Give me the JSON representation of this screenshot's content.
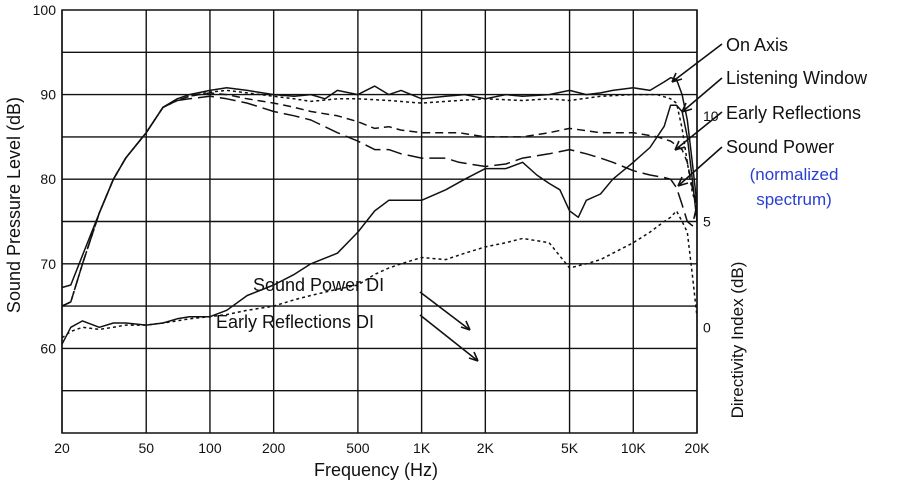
{
  "chart_data": {
    "type": "line",
    "xlabel": "Frequency (Hz)",
    "ylabel": "Sound Pressure Level (dB)",
    "y2label": "Directivity Index (dB)",
    "xscale": "log",
    "xlim": [
      20,
      20000
    ],
    "ylim": [
      50,
      100
    ],
    "y2lim": [
      -5,
      15
    ],
    "grid": true,
    "x_ticks": [
      {
        "value": 20,
        "label": "20"
      },
      {
        "value": 50,
        "label": "50"
      },
      {
        "value": 100,
        "label": "100"
      },
      {
        "value": 200,
        "label": "200"
      },
      {
        "value": 500,
        "label": "500"
      },
      {
        "value": 1000,
        "label": "1K"
      },
      {
        "value": 2000,
        "label": "2K"
      },
      {
        "value": 5000,
        "label": "5K"
      },
      {
        "value": 10000,
        "label": "10K"
      },
      {
        "value": 20000,
        "label": "20K"
      }
    ],
    "y_ticks": [
      {
        "value": 60,
        "label": "60"
      },
      {
        "value": 70,
        "label": "70"
      },
      {
        "value": 80,
        "label": "80"
      },
      {
        "value": 90,
        "label": "90"
      },
      {
        "value": 100,
        "label": "100"
      }
    ],
    "y2_ticks": [
      {
        "value": 0,
        "label": "0"
      },
      {
        "value": 5,
        "label": "5"
      },
      {
        "value": 10,
        "label": "10"
      }
    ],
    "series": [
      {
        "name": "On Axis",
        "axis": "left",
        "style": "solid",
        "x": [
          20,
          22,
          25,
          30,
          35,
          40,
          50,
          60,
          70,
          80,
          100,
          120,
          150,
          200,
          250,
          300,
          350,
          400,
          500,
          600,
          700,
          800,
          1000,
          1300,
          1600,
          2000,
          2500,
          3000,
          4000,
          5000,
          6000,
          7000,
          8000,
          10000,
          12000,
          14000,
          15000,
          16000,
          17000,
          18000,
          19000,
          20000
        ],
        "y": [
          67.2,
          67.5,
          71,
          76,
          80,
          82.5,
          85.5,
          88.5,
          89.5,
          90,
          90.5,
          90.8,
          90.5,
          90,
          89.8,
          90,
          89.5,
          90.5,
          90,
          91,
          90,
          90.5,
          89.5,
          89.8,
          90,
          89.5,
          90,
          89.8,
          90,
          90.5,
          90,
          90.2,
          90.5,
          90.8,
          90.5,
          91.5,
          92,
          91.8,
          90,
          87,
          82,
          77
        ]
      },
      {
        "name": "Listening Window",
        "axis": "left",
        "style": "dotted",
        "x": [
          20,
          22,
          25,
          30,
          35,
          40,
          50,
          60,
          70,
          80,
          100,
          120,
          150,
          200,
          250,
          300,
          400,
          500,
          700,
          1000,
          1500,
          2000,
          3000,
          4000,
          5000,
          7000,
          10000,
          13000,
          15000,
          16000,
          17000,
          18000,
          19000,
          20000
        ],
        "y": [
          65,
          65.5,
          70,
          76,
          80,
          82.5,
          85.5,
          88.5,
          89.3,
          89.8,
          90.3,
          90.5,
          90.2,
          89.8,
          89.5,
          89.2,
          89.5,
          89.5,
          89.3,
          89,
          89.3,
          89.5,
          89.3,
          89.5,
          89.3,
          89.8,
          90,
          90,
          89.5,
          89,
          86,
          82,
          78.5,
          76.5
        ]
      },
      {
        "name": "Early Reflections",
        "axis": "left",
        "style": "dashed",
        "x": [
          20,
          22,
          25,
          30,
          35,
          40,
          50,
          60,
          70,
          80,
          100,
          120,
          150,
          200,
          250,
          300,
          400,
          500,
          600,
          700,
          800,
          1000,
          1500,
          2000,
          3000,
          4000,
          5000,
          7000,
          10000,
          13000,
          15000,
          16000,
          17000,
          18000,
          19000,
          20000
        ],
        "y": [
          65,
          65.5,
          70,
          76,
          80,
          82.5,
          85.5,
          88.5,
          89.3,
          89.8,
          90.2,
          90,
          89.5,
          89,
          88.5,
          88,
          87.5,
          86.8,
          86,
          86.2,
          85.8,
          85.5,
          85.5,
          85,
          85,
          85.5,
          86,
          85.5,
          85.5,
          85,
          84.5,
          84,
          83.5,
          82,
          79,
          77
        ]
      },
      {
        "name": "Sound Power",
        "axis": "left",
        "style": "longdash",
        "x": [
          20,
          22,
          25,
          30,
          35,
          40,
          50,
          60,
          70,
          80,
          100,
          120,
          150,
          200,
          250,
          300,
          400,
          500,
          600,
          700,
          800,
          1000,
          1300,
          1500,
          2000,
          2500,
          3000,
          4000,
          5000,
          6000,
          7000,
          8000,
          10000,
          12000,
          14000,
          15000,
          16000,
          17000,
          18000,
          19000,
          20000
        ],
        "y": [
          65,
          65.5,
          70,
          76,
          80,
          82.5,
          85.5,
          88.5,
          89.3,
          89.5,
          89.8,
          89.5,
          89,
          88,
          87.5,
          87,
          85.5,
          84.5,
          83.5,
          83.5,
          83,
          82.5,
          82.5,
          82,
          81.5,
          81.8,
          82.5,
          83,
          83.5,
          83,
          82.5,
          82,
          81,
          80.5,
          80.2,
          80,
          79,
          77,
          75,
          74.5,
          77
        ]
      },
      {
        "name": "Sound Power DI",
        "axis": "right",
        "style": "solid",
        "x": [
          20,
          22,
          25,
          30,
          35,
          40,
          50,
          60,
          70,
          80,
          100,
          120,
          150,
          200,
          250,
          300,
          400,
          500,
          600,
          700,
          800,
          1000,
          1300,
          1600,
          2000,
          2500,
          3000,
          3500,
          4000,
          4500,
          5000,
          5500,
          6000,
          7000,
          8000,
          10000,
          12000,
          14000,
          15000,
          16000,
          17000,
          18000,
          19000,
          20000
        ],
        "y": [
          -0.8,
          0,
          0.3,
          0,
          0.2,
          0.2,
          0.1,
          0.2,
          0.4,
          0.5,
          0.5,
          0.8,
          1.5,
          2,
          2.5,
          3,
          3.5,
          4.5,
          5.5,
          6,
          6,
          6,
          6.5,
          7,
          7.5,
          7.5,
          7.8,
          7.2,
          6.8,
          6.5,
          5.5,
          5.2,
          6,
          6.3,
          7,
          7.8,
          8.5,
          9.5,
          10.5,
          10.5,
          10.2,
          9,
          7,
          5
        ]
      },
      {
        "name": "Early Reflections DI",
        "axis": "right",
        "style": "dotted",
        "x": [
          20,
          22,
          25,
          30,
          35,
          40,
          50,
          60,
          70,
          80,
          100,
          120,
          150,
          200,
          250,
          300,
          400,
          500,
          600,
          700,
          800,
          1000,
          1300,
          1600,
          2000,
          2500,
          3000,
          4000,
          5000,
          6000,
          7000,
          8000,
          10000,
          12000,
          14000,
          15000,
          16000,
          17000,
          18000,
          19000,
          20000
        ],
        "y": [
          -0.5,
          -0.2,
          0,
          -0.1,
          0,
          0.1,
          0.1,
          0.2,
          0.3,
          0.4,
          0.5,
          0.6,
          0.8,
          1,
          1.3,
          1.5,
          1.8,
          2,
          2.5,
          2.8,
          3,
          3.3,
          3.2,
          3.5,
          3.8,
          4,
          4.2,
          4,
          2.8,
          3,
          3.2,
          3.5,
          4,
          4.5,
          5,
          5.2,
          5.5,
          5,
          4.5,
          2.5,
          0.5
        ]
      }
    ],
    "annotations": [
      {
        "text": "On Axis",
        "target": "On Axis"
      },
      {
        "text": "Listening Window",
        "target": "Listening Window"
      },
      {
        "text": "Early Reflections",
        "target": "Early Reflections"
      },
      {
        "text": "Sound Power",
        "target": "Sound Power"
      },
      {
        "text": "(normalized",
        "target": "Sound Power"
      },
      {
        "text": "spectrum)",
        "target": "Sound Power"
      },
      {
        "text": "Sound Power DI",
        "target": "Sound Power DI"
      },
      {
        "text": "Early Reflections DI",
        "target": "Early Reflections DI"
      }
    ],
    "colors": {
      "line": "#111111",
      "grid": "#111111",
      "annotation_accent": "#2a3fd0"
    }
  }
}
